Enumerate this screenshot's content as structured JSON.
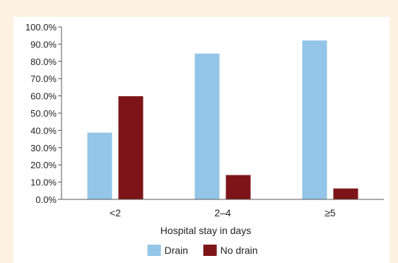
{
  "chart_data": {
    "type": "bar",
    "categories": [
      "<2",
      "2–4",
      "≥5"
    ],
    "series": [
      {
        "name": "Drain",
        "values": [
          38.7,
          84.5,
          92.1
        ],
        "color": "#93c5e8"
      },
      {
        "name": "No drain",
        "values": [
          59.8,
          14.1,
          6.3
        ],
        "color": "#7d1518"
      }
    ],
    "title": "",
    "xlabel": "Hospital stay in days",
    "ylabel": "",
    "ylim": [
      0,
      100
    ],
    "ytick_labels": [
      "0.0%",
      "10.0%",
      "20.0%",
      "30.0%",
      "40.0%",
      "50.0%",
      "60.0%",
      "70.0%",
      "80.0%",
      "90.0%",
      "100.0%"
    ],
    "grid": false,
    "legend_position": "bottom"
  },
  "colors": {
    "page_background": "#fdf2e2",
    "panel_background": "#ffffff",
    "axis": "#555555"
  }
}
